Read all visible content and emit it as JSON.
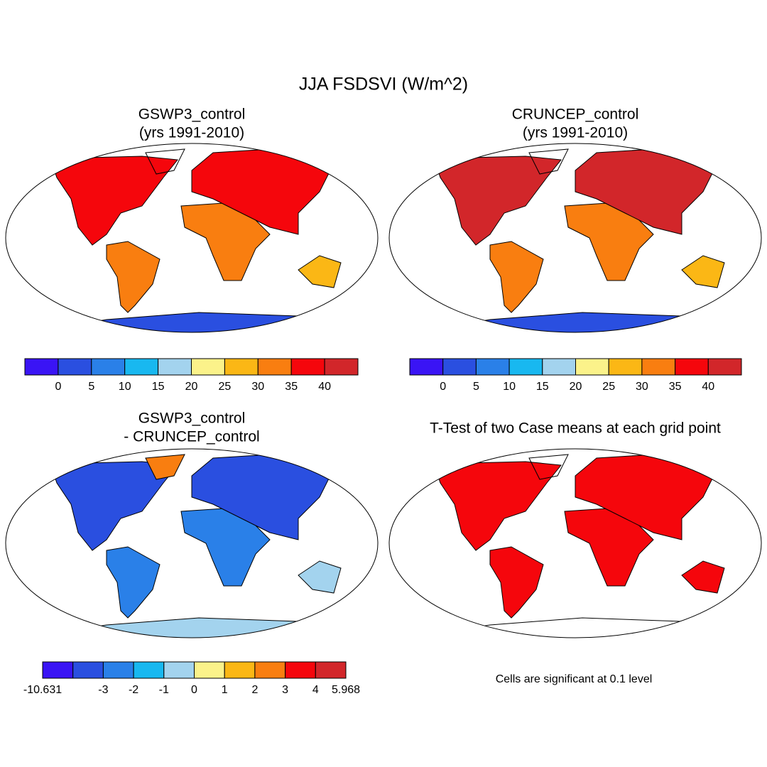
{
  "title": "JJA FSDSVI (W/m^2)",
  "panels": [
    {
      "title": [
        "GSWP3_control",
        "(yrs 1991-2010)"
      ],
      "colorbar": {
        "colors": [
          "#3a14f5",
          "#2a4fe0",
          "#2a80e8",
          "#18b8f0",
          "#a3d3ee",
          "#fbf28a",
          "#fbb715",
          "#f97e10",
          "#f5060c",
          "#d2262a"
        ],
        "labels": [
          null,
          "0",
          "5",
          "10",
          "15",
          "20",
          "25",
          "30",
          "35",
          "40",
          null
        ]
      }
    },
    {
      "title": [
        "CRUNCEP_control",
        "(yrs 1991-2010)"
      ],
      "colorbar": {
        "colors": [
          "#3a14f5",
          "#2a4fe0",
          "#2a80e8",
          "#18b8f0",
          "#a3d3ee",
          "#fbf28a",
          "#fbb715",
          "#f97e10",
          "#f5060c",
          "#d2262a"
        ],
        "labels": [
          null,
          "0",
          "5",
          "10",
          "15",
          "20",
          "25",
          "30",
          "35",
          "40",
          null
        ]
      }
    },
    {
      "title": [
        "GSWP3_control",
        "- CRUNCEP_control"
      ],
      "colorbar": {
        "colors": [
          "#3a14f5",
          "#2a4fe0",
          "#2a80e8",
          "#18b8f0",
          "#a3d3ee",
          "#fbf28a",
          "#fbb715",
          "#f97e10",
          "#f5060c",
          "#d2262a"
        ],
        "labels": [
          "-10.631",
          null,
          "-3",
          "-2",
          "-1",
          "0",
          "1",
          "2",
          "3",
          "4",
          "5.968"
        ]
      }
    },
    {
      "title": [
        "T-Test of two Case means at each grid point"
      ],
      "note": "Cells are significant at 0.1 level"
    }
  ]
}
